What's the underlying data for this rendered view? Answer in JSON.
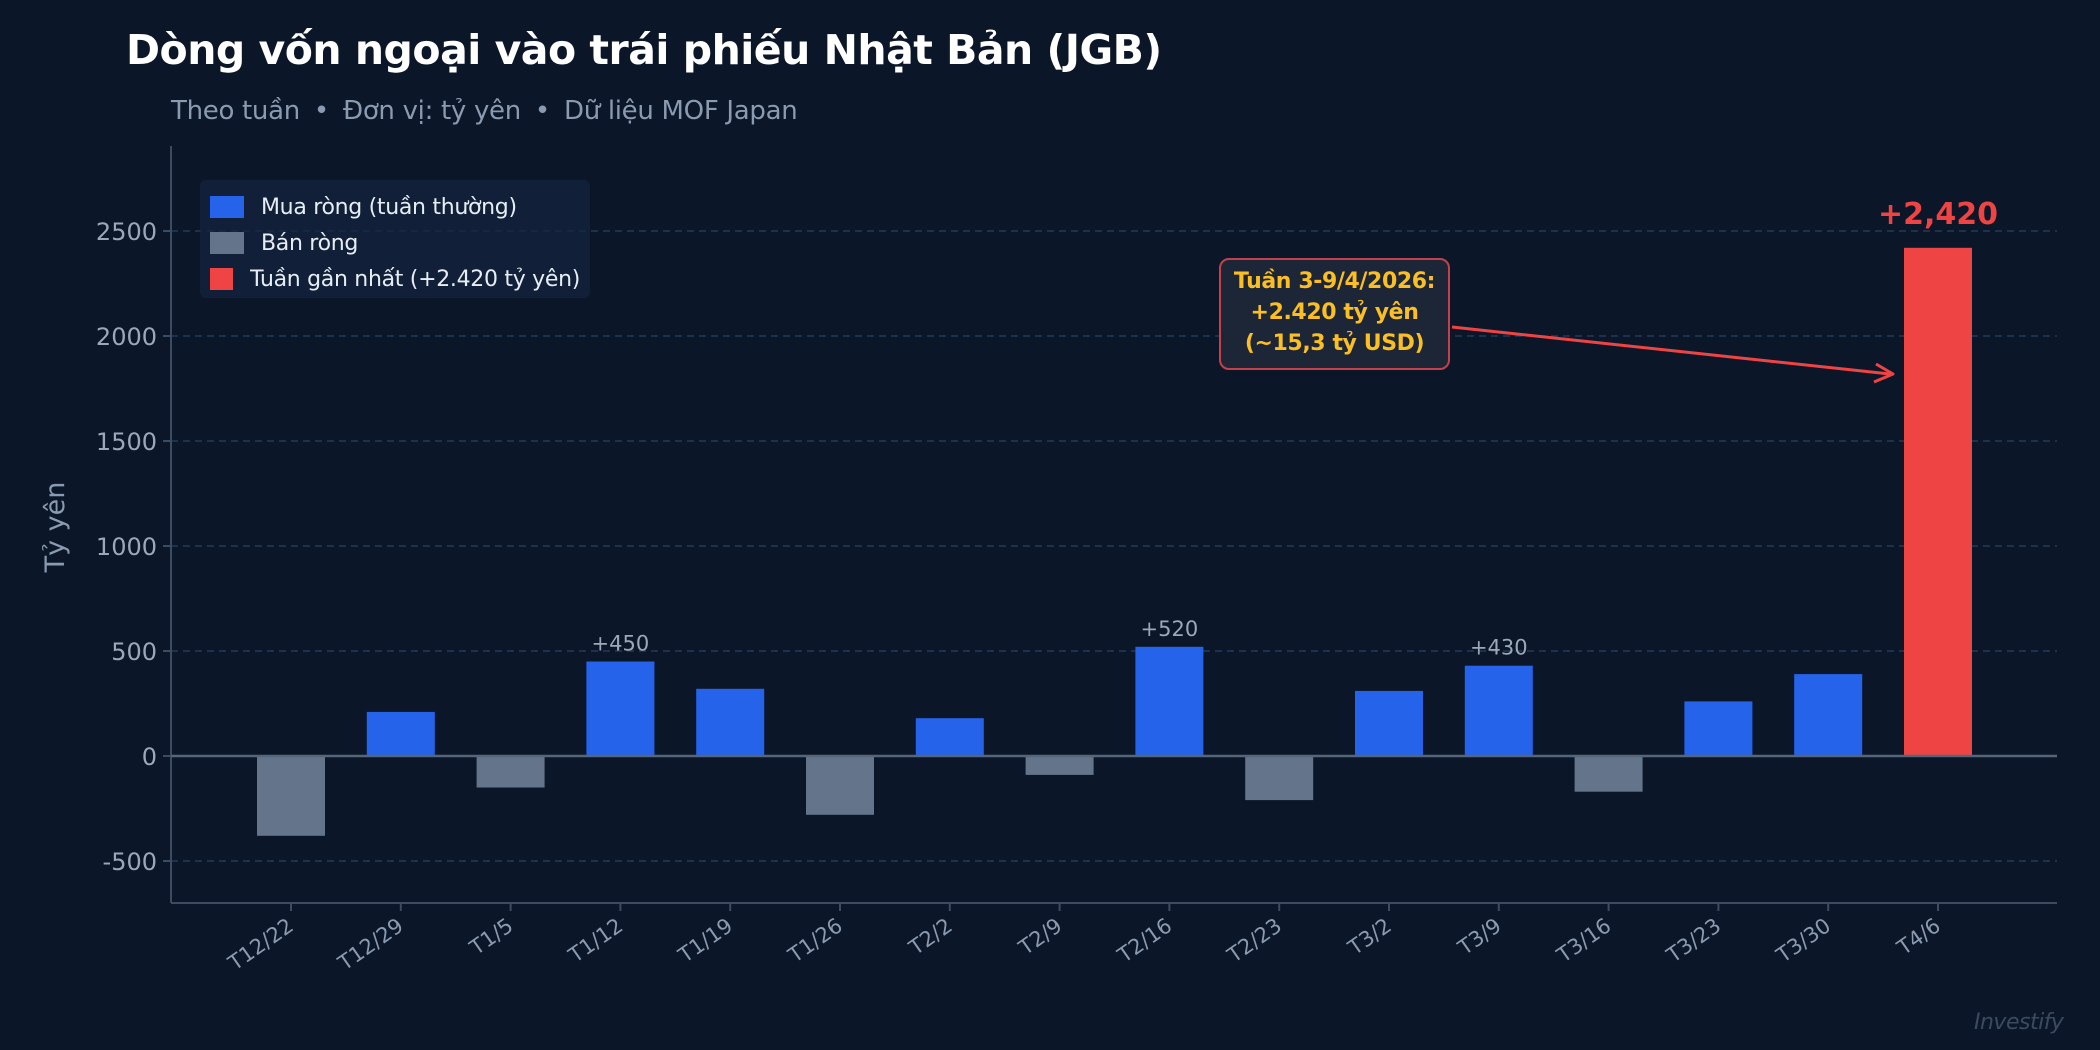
{
  "header": {
    "title": "Dòng vốn ngoại vào trái phiếu Nhật Bản (JGB)",
    "subtitle_parts": [
      "Theo tuần",
      "Đơn vị: tỷ yên",
      "Dữ liệu MOF Japan"
    ],
    "separator": "•"
  },
  "legend": {
    "items": [
      {
        "label": "Mua ròng (tuần thường)",
        "color": "#2563eb"
      },
      {
        "label": "Bán ròng",
        "color": "#64748b"
      },
      {
        "label": "Tuần gần nhất (+2.420 tỷ yên)",
        "color": "#ef4444"
      }
    ]
  },
  "annotation": {
    "lines": [
      "Tuần 3-9/4/2026:",
      "+2.420 tỷ yên",
      "(~15,3 tỷ USD)"
    ],
    "text_color": "#fbbf24",
    "border_color": "#ef4444"
  },
  "peak_label": "+2,420",
  "watermark": "Investify",
  "colors": {
    "background": "#0b1628",
    "positive": "#2563eb",
    "negative": "#64748b",
    "latest": "#ef4444",
    "grid": "#233a5a",
    "axis": "#3c4b60"
  },
  "chart_data": {
    "type": "bar",
    "title": "Dòng vốn ngoại vào trái phiếu Nhật Bản (JGB)",
    "subtitle": "Theo tuần • Đơn vị: tỷ yên • Dữ liệu MOF Japan",
    "xlabel": "",
    "ylabel": "Tỷ yên",
    "categories": [
      "T12/22",
      "T12/29",
      "T1/5",
      "T1/12",
      "T1/19",
      "T1/26",
      "T2/2",
      "T2/9",
      "T2/16",
      "T2/23",
      "T3/2",
      "T3/9",
      "T3/16",
      "T3/23",
      "T3/30",
      "T4/6"
    ],
    "values": [
      -380,
      210,
      -150,
      450,
      320,
      -280,
      180,
      -90,
      520,
      -210,
      310,
      430,
      -170,
      260,
      390,
      2420
    ],
    "bar_labels": {
      "T1/12": "+450",
      "T2/16": "+520",
      "T3/9": "+430",
      "T4/6": "+2,420"
    },
    "yticks": [
      -500,
      0,
      500,
      1000,
      1500,
      2000,
      2500
    ],
    "ylim": [
      -700,
      2900
    ],
    "grid": "horizontal dashed",
    "legend_position": "upper left",
    "legend": [
      "Mua ròng (tuần thường)",
      "Bán ròng",
      "Tuần gần nhất (+2.420 tỷ yên)"
    ],
    "annotation": "Tuần 3-9/4/2026: +2.420 tỷ yên (~15,3 tỷ USD)"
  }
}
